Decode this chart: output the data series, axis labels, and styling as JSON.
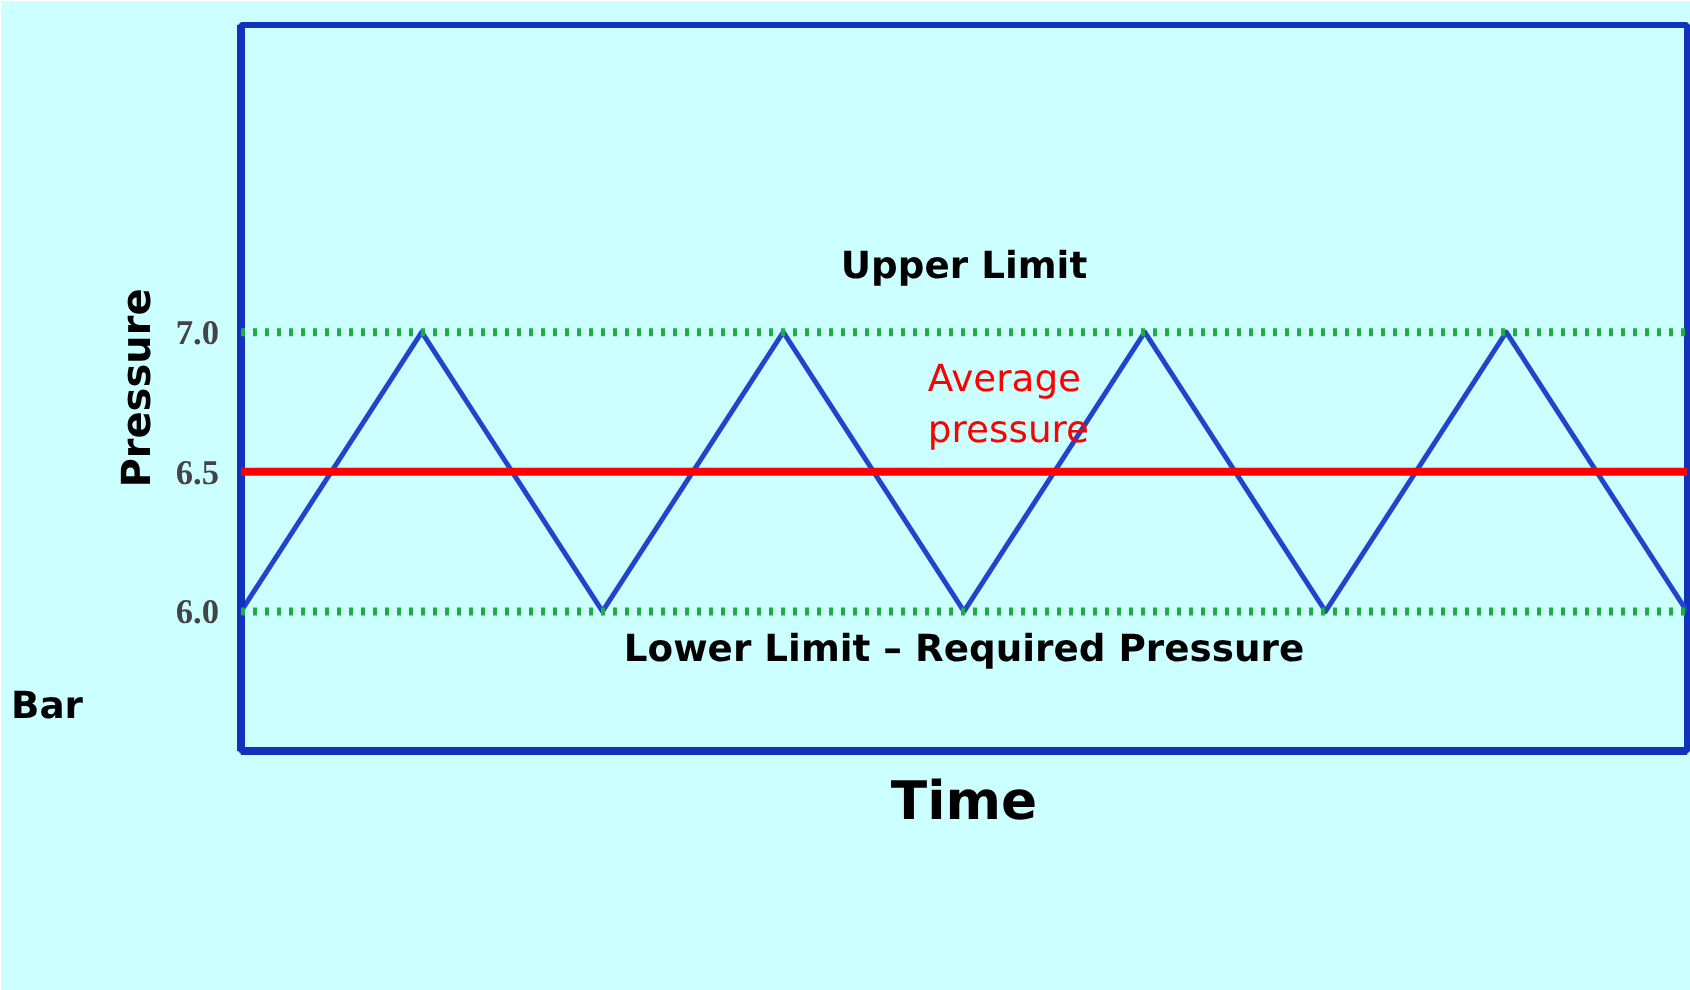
{
  "chart_data": {
    "type": "line",
    "xlabel": "Time",
    "ylabel": "Pressure",
    "annotations": [
      "Bar"
    ],
    "categories": [
      null,
      null,
      null,
      null,
      null,
      null,
      null,
      null,
      null
    ],
    "series": [
      {
        "color": "#2244cc",
        "values": [
          6.0,
          7.0,
          6.0,
          7.0,
          6.0,
          7.0,
          6.0,
          7.0,
          6.0
        ]
      }
    ],
    "ylim": [
      5.5,
      8.1
    ],
    "yticks": [
      {
        "value": 6,
        "label": "6.0"
      },
      {
        "value": 6.5,
        "label": "6.5"
      },
      {
        "value": 7,
        "label": "7.0"
      }
    ],
    "ref_lines": [
      {
        "axis": "y",
        "value": 7.0,
        "label": "Upper Limit",
        "color": "#22aa44",
        "line_style": "dotted"
      },
      {
        "axis": "y",
        "value": 6.5,
        "label": "Average\npressure",
        "color": "#ff0000",
        "line_style": "solid"
      },
      {
        "axis": "y",
        "value": 6.0,
        "label": "Lower Limit – Required Pressure",
        "color": "#22aa44",
        "line_style": "dotted"
      }
    ],
    "grid": false,
    "marker": "none",
    "line_style": "solid"
  }
}
